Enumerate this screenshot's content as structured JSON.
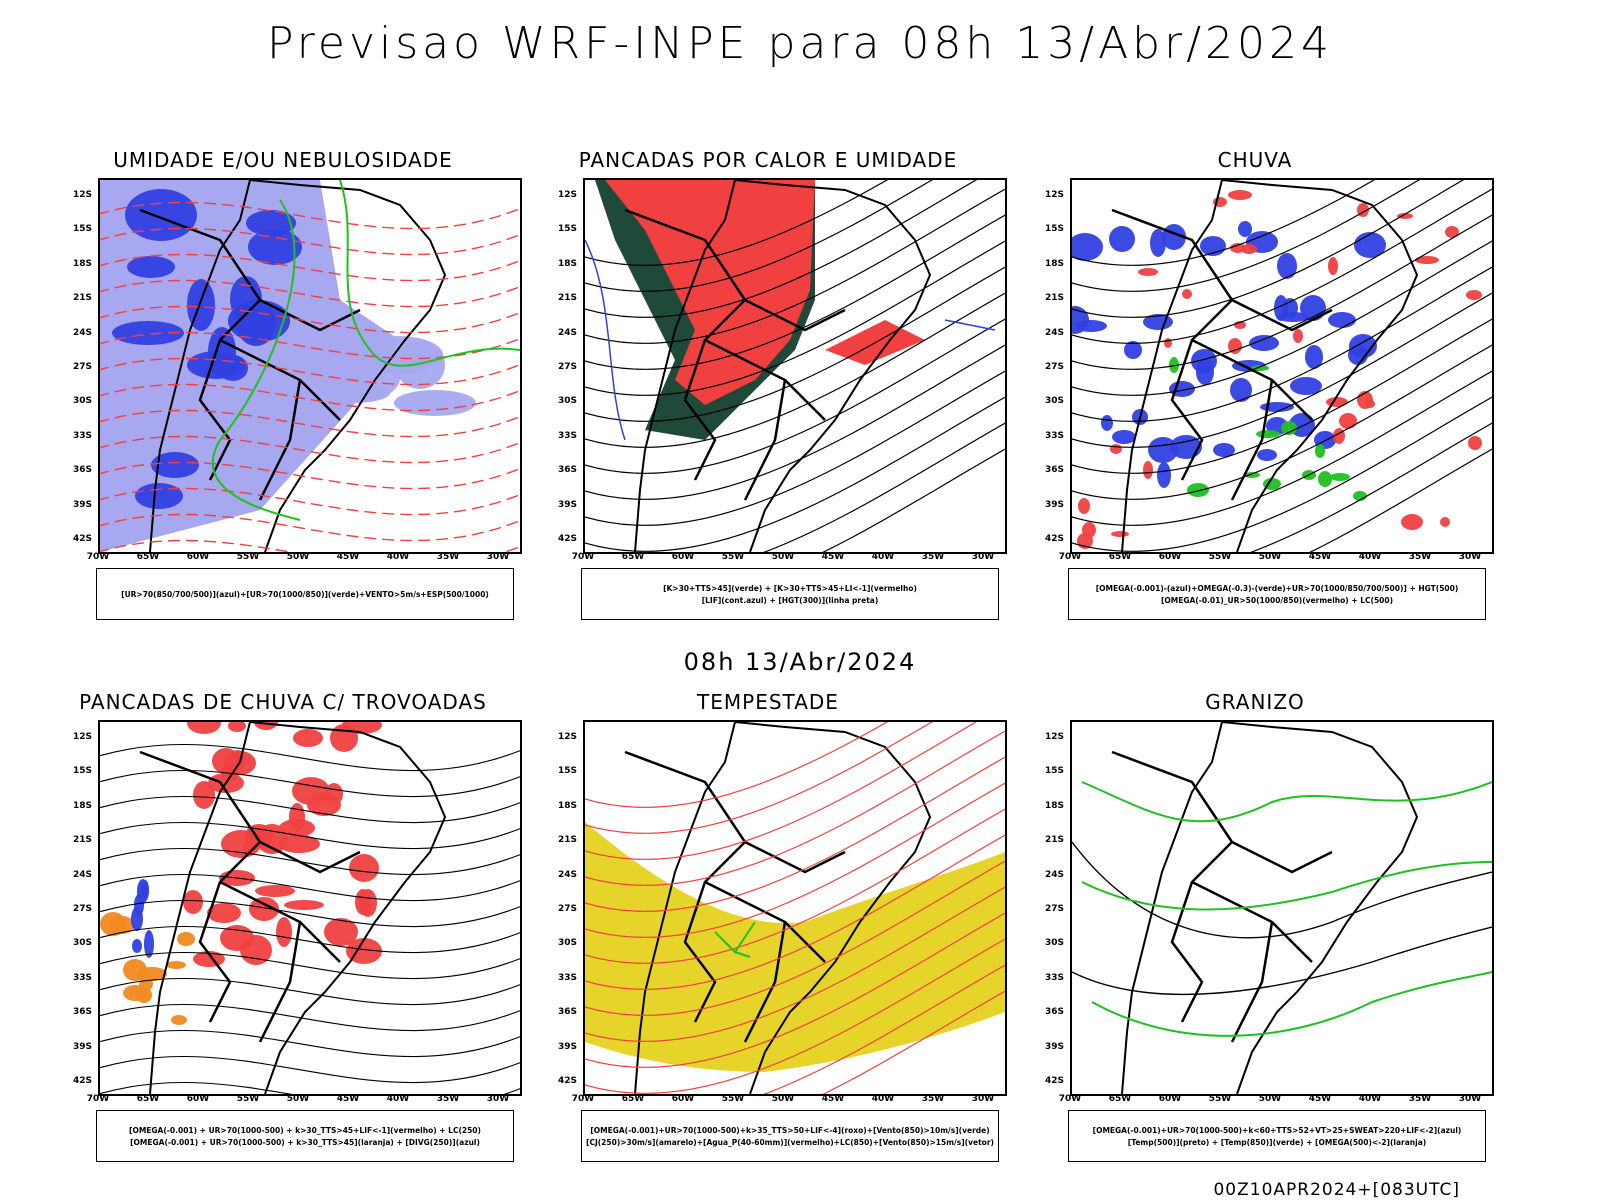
{
  "title": "Previsao WRF-INPE  para 08h 13/Abr/2024",
  "mid_title": "08h 13/Abr/2024",
  "footer": "00Z10APR2024+[083UTC]",
  "y_ticks": [
    "12S",
    "15S",
    "18S",
    "21S",
    "24S",
    "27S",
    "30S",
    "33S",
    "36S",
    "39S",
    "42S"
  ],
  "x_ticks": [
    "70W",
    "65W",
    "60W",
    "55W",
    "50W",
    "45W",
    "40W",
    "35W",
    "30W"
  ],
  "panels": [
    {
      "title": "UMIDADE E/OU NEBULOSIDADE",
      "legend1": "[UR>70(850/700/500)](azul)+[UR>70(1000/850)](verde)+VENTO>5m/s+ESP(500/1000)",
      "legend2": ""
    },
    {
      "title": "PANCADAS POR CALOR E UMIDADE",
      "legend1": "[K>30+TTS>45](verde) + [K>30+TTS>45+LI<-1](vermelho)",
      "legend2": "[LIF](cont.azul) + [HGT(300)](linha preta)"
    },
    {
      "title": "CHUVA",
      "legend1": "[OMEGA(-0.001)-(azul)+OMEGA(-0.3)-(verde)+UR>70(1000/850/700/500)] + HGT(500)",
      "legend2": "[OMEGA(-0.01)_UR>50(1000/850)(vermelho) + LC(500)"
    },
    {
      "title": "PANCADAS DE CHUVA C/ TROVOADAS",
      "legend1": "[OMEGA(-0.001) + UR>70(1000-500) + k>30_TTS>45+LIF<-1](vermelho) + LC(250)",
      "legend2": "[OMEGA(-0.001) + UR>70(1000-500) + k>30_TTS>45](laranja) + [DIVG(250)](azul)"
    },
    {
      "title": "TEMPESTADE",
      "legend1": "[OMEGA(-0.001)+UR>70(1000-500)+k>35_TTS>50+LIF<-4](roxo)+[Vento(850)>10m/s](verde)",
      "legend2": "[CJ(250)>30m/s](amarelo)+[Agua_P(40-60mm)](vermelho)+LC(850)+[Vento(850)>15m/s](vetor)"
    },
    {
      "title": "GRANIZO",
      "legend1": "[OMEGA(-0.001)+UR>70(1000-500)+k<60+TTS>52+VT>25+SWEAT>220+LIF<-2](azul)",
      "legend2": "[Temp(500)](preto) + [Temp(850)](verde) + [OMEGA(500)<-2](laranja)"
    }
  ],
  "colors": {
    "blue": "#3040e0",
    "lightblue": "#a8a8f0",
    "green": "#20c020",
    "red": "#f04040",
    "darkgreen": "#1f4a3a",
    "yellow": "#e6d42a",
    "orange": "#f08a20"
  }
}
